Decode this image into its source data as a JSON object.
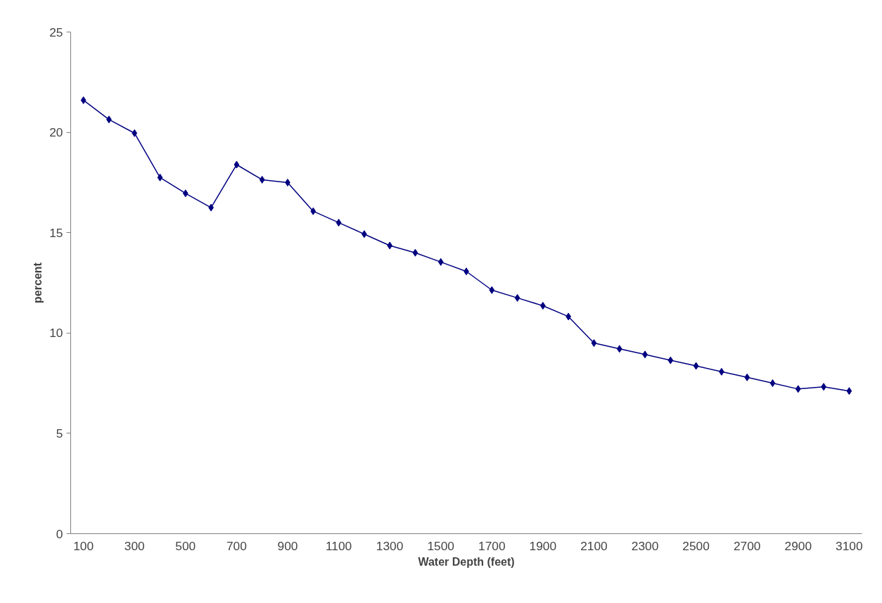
{
  "chart_data": {
    "type": "line",
    "xlabel": "Water Depth (feet)",
    "ylabel": "percent",
    "categories": [
      "100",
      null,
      "300",
      null,
      "500",
      null,
      "700",
      null,
      "900",
      null,
      "1100",
      null,
      "1300",
      null,
      "1500",
      null,
      "1700",
      null,
      "1900",
      null,
      "2100",
      null,
      "2300",
      null,
      "2500",
      null,
      "2700",
      null,
      "2900",
      null,
      "3100"
    ],
    "series": [
      {
        "color": "#000080",
        "values": [
          21.6,
          20.64,
          19.96,
          17.75,
          16.96,
          16.25,
          18.39,
          17.64,
          17.5,
          16.07,
          15.5,
          14.93,
          14.36,
          14.0,
          13.54,
          13.07,
          12.14,
          11.75,
          11.36,
          10.82,
          9.5,
          9.21,
          8.93,
          8.64,
          8.36,
          8.07,
          7.79,
          7.5,
          7.21,
          7.32,
          7.11
        ]
      }
    ],
    "ylim": [
      0,
      25
    ],
    "yticks": [
      0,
      5,
      10,
      15,
      20,
      25
    ],
    "grid": false,
    "marker": "diamond",
    "line_style": "solid"
  }
}
